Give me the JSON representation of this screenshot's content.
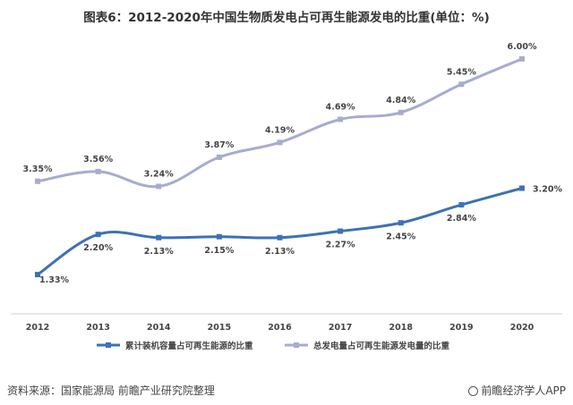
{
  "title": "图表6：2012-2020年中国生物质发电占可再生能源发电的比重(单位：%)",
  "footer": {
    "source": "资料来源：国家能源局 前瞻产业研究院整理",
    "brand": "前瞻经济学人APP"
  },
  "chart_data": {
    "type": "line",
    "categories": [
      "2012",
      "2013",
      "2014",
      "2015",
      "2016",
      "2017",
      "2018",
      "2019",
      "2020"
    ],
    "series": [
      {
        "name": "累计装机容量占可再生能源的比重",
        "values": [
          1.33,
          2.2,
          2.13,
          2.15,
          2.13,
          2.27,
          2.45,
          2.84,
          3.2
        ],
        "labels": [
          "1.33%",
          "2.20%",
          "2.13%",
          "2.15%",
          "2.13%",
          "2.27%",
          "2.45%",
          "2.84%",
          "3.20%"
        ],
        "color": "#3d72b4"
      },
      {
        "name": "总发电量占可再生能源发电量的比重",
        "values": [
          3.35,
          3.56,
          3.24,
          3.87,
          4.19,
          4.69,
          4.84,
          5.45,
          6.0
        ],
        "labels": [
          "3.35%",
          "3.56%",
          "3.24%",
          "3.87%",
          "4.19%",
          "4.69%",
          "4.84%",
          "5.45%",
          "6.00%"
        ],
        "color": "#a6acd0"
      }
    ],
    "ylim": [
      0.5,
      6.5
    ],
    "grid": false,
    "legend": "bottom"
  }
}
